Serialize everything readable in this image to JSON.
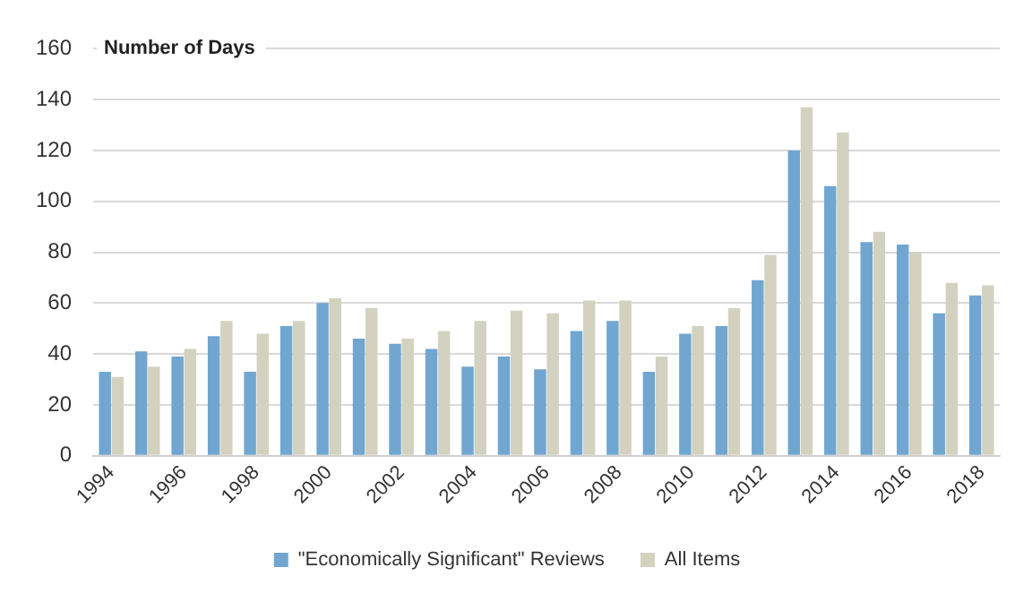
{
  "chart_data": {
    "type": "bar",
    "ylabel": "Number of Days",
    "categories": [
      "1994",
      null,
      "1996",
      null,
      "1998",
      null,
      "2000",
      null,
      "2002",
      null,
      "2004",
      null,
      "2006",
      null,
      "2008",
      null,
      "2010",
      null,
      "2012",
      null,
      "2014",
      null,
      "2016",
      null,
      "2018"
    ],
    "series": [
      {
        "name": "\"Economically Significant\" Reviews",
        "color": "#71a6d1",
        "values": [
          33,
          41,
          39,
          47,
          33,
          51,
          60,
          46,
          44,
          42,
          35,
          39,
          34,
          49,
          53,
          33,
          48,
          51,
          69,
          120,
          106,
          84,
          83,
          56,
          63
        ]
      },
      {
        "name": "All Items",
        "color": "#d3d2c0",
        "values": [
          31,
          35,
          42,
          53,
          48,
          53,
          62,
          58,
          46,
          49,
          53,
          57,
          56,
          61,
          61,
          39,
          51,
          58,
          79,
          137,
          127,
          88,
          80,
          68,
          67
        ]
      }
    ],
    "ylim": [
      0,
      160
    ],
    "yticks": [
      0,
      20,
      40,
      60,
      80,
      100,
      120,
      140,
      160
    ],
    "grid": "y",
    "legend": "bottom"
  }
}
